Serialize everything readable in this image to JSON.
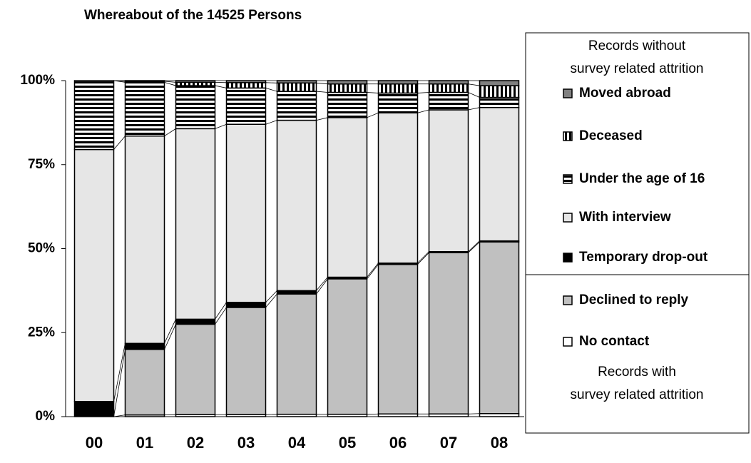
{
  "chart_data": {
    "type": "stacked_bar_percent",
    "title": "Whereabout of the 14525 Persons",
    "categories": [
      "00",
      "01",
      "02",
      "03",
      "04",
      "05",
      "06",
      "07",
      "08"
    ],
    "ylim": [
      0,
      100
    ],
    "yticks": [
      {
        "value": 0,
        "label": "0%"
      },
      {
        "value": 25,
        "label": "25%"
      },
      {
        "value": 50,
        "label": "50%"
      },
      {
        "value": 75,
        "label": "75%"
      },
      {
        "value": 100,
        "label": "100%"
      }
    ],
    "series": [
      {
        "name": "No contact",
        "color": "#ffffff",
        "pattern": "solid",
        "values": [
          0,
          0.5,
          0.6,
          0.6,
          0.7,
          0.7,
          0.8,
          0.8,
          0.9
        ]
      },
      {
        "name": "Declined to reply",
        "color": "#c0c0c0",
        "pattern": "solid",
        "values": [
          0,
          19.5,
          26.9,
          31.9,
          35.8,
          40.3,
          44.5,
          48.0,
          51.1
        ]
      },
      {
        "name": "Temporary drop-out",
        "color": "#000000",
        "pattern": "solid",
        "values": [
          4.5,
          1.8,
          1.5,
          1.5,
          1.0,
          0.5,
          0.4,
          0.3,
          0.3
        ]
      },
      {
        "name": "With interview",
        "color": "#e6e6e6",
        "pattern": "solid",
        "values": [
          75.0,
          61.7,
          56.7,
          53.0,
          50.7,
          47.5,
          44.7,
          42.2,
          39.7
        ]
      },
      {
        "name": "Under the age of 16",
        "color": "#000000",
        "pattern": "hstripes",
        "values": [
          20.5,
          16.0,
          12.8,
          10.8,
          8.6,
          7.5,
          5.9,
          5.2,
          3.0
        ]
      },
      {
        "name": "Deceased",
        "color": "#000000",
        "pattern": "vstripes",
        "values": [
          0,
          0.3,
          1.0,
          1.6,
          2.5,
          2.5,
          2.7,
          2.5,
          3.5
        ]
      },
      {
        "name": "Moved abroad",
        "color": "#808080",
        "pattern": "solid",
        "values": [
          0,
          0.2,
          0.5,
          0.6,
          0.7,
          1.0,
          1.0,
          1.0,
          1.5
        ]
      }
    ],
    "legend_header_top": [
      "Records without",
      "survey related attrition"
    ],
    "legend_header_bottom": [
      "Records with",
      "survey related attrition"
    ],
    "series_lines": true
  }
}
